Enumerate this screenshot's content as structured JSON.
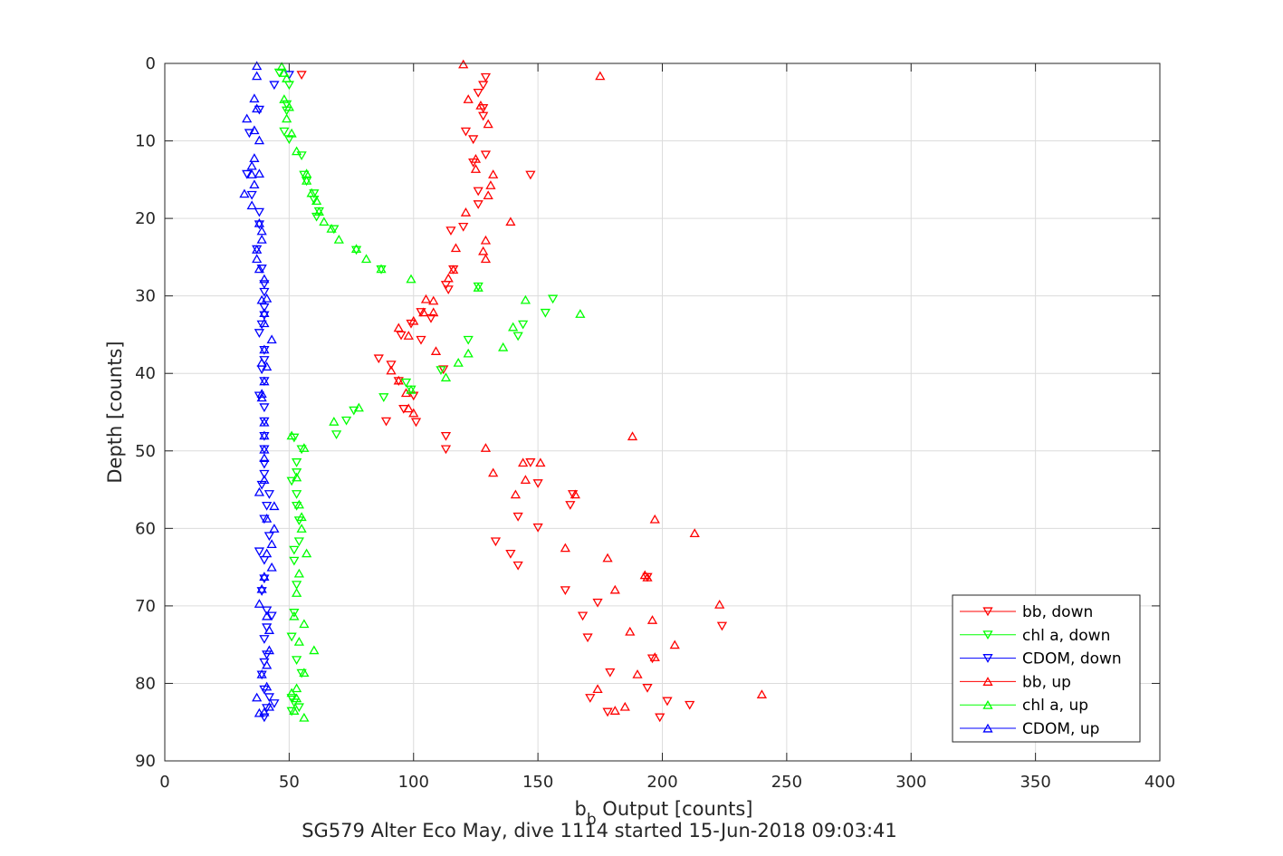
{
  "chart_data": {
    "type": "scatter",
    "title": "",
    "caption": "SG579 Alter Eco May, dive 1114 started 15-Jun-2018 09:03:41",
    "xlabel": "b",
    "xlabel_sub": "b",
    "xlabel_rest": " Output [counts]",
    "ylabel": "Depth [counts]",
    "xlim": [
      0,
      400
    ],
    "ylim": [
      0,
      90
    ],
    "y_reversed": true,
    "grid": true,
    "legend_position": "bottom-right",
    "x_ticks": [
      "0",
      "50",
      "100",
      "150",
      "200",
      "250",
      "300",
      "350",
      "400"
    ],
    "y_ticks": [
      "0",
      "10",
      "20",
      "30",
      "40",
      "50",
      "60",
      "70",
      "80",
      "90"
    ],
    "series": [
      {
        "name": "bb, down",
        "color": "#ff0000",
        "marker": "triangle-down",
        "points": [
          [
            55,
            1.5
          ],
          [
            129,
            1.8
          ],
          [
            128,
            2.8
          ],
          [
            126,
            3.8
          ],
          [
            128,
            5.8
          ],
          [
            128,
            6.8
          ],
          [
            121,
            8.8
          ],
          [
            124,
            9.8
          ],
          [
            129,
            11.8
          ],
          [
            124,
            12.8
          ],
          [
            147,
            14.4
          ],
          [
            126,
            16.5
          ],
          [
            126,
            18.2
          ],
          [
            120,
            21.1
          ],
          [
            115,
            21.6
          ],
          [
            116,
            26.6
          ],
          [
            113,
            28.6
          ],
          [
            114,
            29.2
          ],
          [
            103,
            32.1
          ],
          [
            107,
            32.9
          ],
          [
            99,
            33.6
          ],
          [
            95,
            35.1
          ],
          [
            103,
            35.7
          ],
          [
            86,
            38.1
          ],
          [
            91,
            38.9
          ],
          [
            112,
            39.5
          ],
          [
            94,
            41.0
          ],
          [
            100,
            42.9
          ],
          [
            96,
            44.6
          ],
          [
            89,
            46.2
          ],
          [
            101,
            46.3
          ],
          [
            113,
            48.1
          ],
          [
            113,
            49.8
          ],
          [
            147,
            51.5
          ],
          [
            150,
            54.2
          ],
          [
            164,
            55.6
          ],
          [
            163,
            57.0
          ],
          [
            142,
            58.5
          ],
          [
            150,
            59.9
          ],
          [
            133,
            61.7
          ],
          [
            139,
            63.3
          ],
          [
            142,
            64.8
          ],
          [
            194,
            66.3
          ],
          [
            161,
            68.0
          ],
          [
            174,
            69.6
          ],
          [
            168,
            71.3
          ],
          [
            170,
            74.1
          ],
          [
            196,
            76.8
          ],
          [
            179,
            78.6
          ],
          [
            194,
            80.6
          ],
          [
            202,
            82.3
          ],
          [
            224,
            72.6
          ],
          [
            171,
            81.9
          ],
          [
            211,
            82.8
          ],
          [
            178,
            83.7
          ],
          [
            199,
            84.4
          ]
        ]
      },
      {
        "name": "chl a, down",
        "color": "#00ff00",
        "marker": "triangle-down",
        "points": [
          [
            46,
            1.2
          ],
          [
            50,
            2.8
          ],
          [
            49,
            5.3
          ],
          [
            49,
            6.1
          ],
          [
            48,
            8.8
          ],
          [
            50,
            9.8
          ],
          [
            55,
            11.9
          ],
          [
            56,
            14.4
          ],
          [
            57,
            15.2
          ],
          [
            60,
            16.8
          ],
          [
            60,
            17.6
          ],
          [
            62,
            19.1
          ],
          [
            61,
            19.8
          ],
          [
            68,
            21.4
          ],
          [
            77,
            24.1
          ],
          [
            87,
            26.6
          ],
          [
            126,
            28.8
          ],
          [
            156,
            30.4
          ],
          [
            153,
            32.2
          ],
          [
            144,
            33.7
          ],
          [
            142,
            35.2
          ],
          [
            122,
            35.7
          ],
          [
            111,
            39.6
          ],
          [
            97,
            41.2
          ],
          [
            99,
            42.1
          ],
          [
            88,
            43.1
          ],
          [
            76,
            44.8
          ],
          [
            73,
            46.1
          ],
          [
            69,
            47.9
          ],
          [
            52,
            48.3
          ],
          [
            55,
            49.8
          ],
          [
            53,
            51.5
          ],
          [
            53,
            52.8
          ],
          [
            51,
            53.9
          ],
          [
            53,
            55.6
          ],
          [
            53,
            57.1
          ],
          [
            54,
            59.0
          ],
          [
            54,
            61.7
          ],
          [
            52,
            62.8
          ],
          [
            52,
            64.2
          ],
          [
            53,
            67.3
          ],
          [
            52,
            70.9
          ],
          [
            51,
            74.0
          ],
          [
            53,
            77.0
          ],
          [
            55,
            78.7
          ],
          [
            51,
            81.9
          ],
          [
            52,
            82.5
          ],
          [
            54,
            83.1
          ],
          [
            51,
            83.6
          ]
        ]
      },
      {
        "name": "CDOM, down",
        "color": "#0000ff",
        "marker": "triangle-down",
        "points": [
          [
            50,
            1.5
          ],
          [
            44,
            2.8
          ],
          [
            38,
            6.0
          ],
          [
            34,
            9.0
          ],
          [
            33,
            14.3
          ],
          [
            35,
            17.0
          ],
          [
            38,
            19.2
          ],
          [
            38,
            20.8
          ],
          [
            37,
            24.0
          ],
          [
            39,
            26.5
          ],
          [
            40,
            28.5
          ],
          [
            40,
            29.5
          ],
          [
            40,
            31.5
          ],
          [
            40,
            32.5
          ],
          [
            39,
            33.7
          ],
          [
            38,
            34.8
          ],
          [
            40,
            37.0
          ],
          [
            40,
            38.3
          ],
          [
            39,
            39.5
          ],
          [
            40,
            41.0
          ],
          [
            38,
            42.9
          ],
          [
            40,
            44.4
          ],
          [
            40,
            46.2
          ],
          [
            40,
            48.1
          ],
          [
            40,
            49.8
          ],
          [
            40,
            51.7
          ],
          [
            40,
            53.0
          ],
          [
            39,
            54.4
          ],
          [
            42,
            55.6
          ],
          [
            41,
            57.1
          ],
          [
            40,
            58.8
          ],
          [
            42,
            61.0
          ],
          [
            38,
            63.0
          ],
          [
            40,
            64.1
          ],
          [
            40,
            66.5
          ],
          [
            39,
            68.1
          ],
          [
            41,
            70.6
          ],
          [
            43,
            71.3
          ],
          [
            41,
            72.8
          ],
          [
            40,
            74.3
          ],
          [
            41,
            76.3
          ],
          [
            40,
            77.3
          ],
          [
            39,
            78.9
          ],
          [
            40,
            80.8
          ],
          [
            42,
            81.8
          ],
          [
            44,
            82.6
          ],
          [
            41,
            83.2
          ],
          [
            40,
            84.4
          ]
        ]
      },
      {
        "name": "bb, up",
        "color": "#ff0000",
        "marker": "triangle-up",
        "points": [
          [
            120,
            0.1
          ],
          [
            175,
            1.6
          ],
          [
            122,
            4.6
          ],
          [
            127,
            5.4
          ],
          [
            130,
            7.8
          ],
          [
            125,
            12.3
          ],
          [
            125,
            13.6
          ],
          [
            132,
            14.3
          ],
          [
            131,
            15.7
          ],
          [
            130,
            17.0
          ],
          [
            121,
            19.2
          ],
          [
            139,
            20.4
          ],
          [
            129,
            22.8
          ],
          [
            117,
            23.8
          ],
          [
            128,
            24.2
          ],
          [
            129,
            25.2
          ],
          [
            116,
            26.6
          ],
          [
            114,
            27.7
          ],
          [
            105,
            30.4
          ],
          [
            108,
            30.6
          ],
          [
            104,
            32.1
          ],
          [
            108,
            32.1
          ],
          [
            100,
            33.2
          ],
          [
            94,
            34.1
          ],
          [
            98,
            35.1
          ],
          [
            109,
            37.1
          ],
          [
            91,
            39.6
          ],
          [
            94,
            40.9
          ],
          [
            97,
            42.5
          ],
          [
            98,
            44.5
          ],
          [
            100,
            45.1
          ],
          [
            188,
            48.1
          ],
          [
            129,
            49.6
          ],
          [
            144,
            51.5
          ],
          [
            151,
            51.5
          ],
          [
            132,
            52.8
          ],
          [
            145,
            53.7
          ],
          [
            141,
            55.6
          ],
          [
            165,
            55.6
          ],
          [
            197,
            58.8
          ],
          [
            213,
            60.6
          ],
          [
            161,
            62.5
          ],
          [
            178,
            63.8
          ],
          [
            193,
            66.0
          ],
          [
            194,
            66.3
          ],
          [
            181,
            67.9
          ],
          [
            223,
            69.8
          ],
          [
            196,
            71.8
          ],
          [
            187,
            73.3
          ],
          [
            205,
            75.0
          ],
          [
            197,
            76.6
          ],
          [
            190,
            78.8
          ],
          [
            240,
            81.4
          ],
          [
            174,
            80.7
          ],
          [
            185,
            83.0
          ],
          [
            181,
            83.5
          ]
        ]
      },
      {
        "name": "chl a, up",
        "color": "#00ff00",
        "marker": "triangle-up",
        "points": [
          [
            47,
            0.4
          ],
          [
            48,
            1.2
          ],
          [
            49,
            1.9
          ],
          [
            48,
            4.6
          ],
          [
            50,
            5.6
          ],
          [
            49,
            7.1
          ],
          [
            51,
            9.0
          ],
          [
            53,
            11.3
          ],
          [
            57,
            14.2
          ],
          [
            57,
            15.1
          ],
          [
            59,
            16.7
          ],
          [
            61,
            17.7
          ],
          [
            62,
            19.1
          ],
          [
            64,
            20.4
          ],
          [
            67,
            21.3
          ],
          [
            70,
            22.7
          ],
          [
            77,
            23.9
          ],
          [
            81,
            25.2
          ],
          [
            87,
            26.5
          ],
          [
            99,
            27.8
          ],
          [
            126,
            28.9
          ],
          [
            145,
            30.5
          ],
          [
            167,
            32.3
          ],
          [
            140,
            34.0
          ],
          [
            136,
            36.6
          ],
          [
            122,
            37.4
          ],
          [
            118,
            38.6
          ],
          [
            113,
            40.5
          ],
          [
            99,
            42.1
          ],
          [
            78,
            44.4
          ],
          [
            68,
            46.2
          ],
          [
            51,
            48.0
          ],
          [
            56,
            49.6
          ],
          [
            53,
            53.4
          ],
          [
            54,
            56.9
          ],
          [
            55,
            58.5
          ],
          [
            55,
            60.0
          ],
          [
            57,
            63.2
          ],
          [
            54,
            65.8
          ],
          [
            53,
            68.3
          ],
          [
            52,
            71.3
          ],
          [
            56,
            72.3
          ],
          [
            54,
            74.6
          ],
          [
            60,
            75.7
          ],
          [
            56,
            78.6
          ],
          [
            53,
            80.6
          ],
          [
            51,
            81.2
          ],
          [
            53,
            81.9
          ],
          [
            56,
            84.4
          ],
          [
            52,
            83.5
          ]
        ]
      },
      {
        "name": "CDOM, up",
        "color": "#0000ff",
        "marker": "triangle-up",
        "points": [
          [
            37,
            0.3
          ],
          [
            37,
            1.6
          ],
          [
            36,
            4.5
          ],
          [
            37,
            5.8
          ],
          [
            33,
            7.1
          ],
          [
            36,
            8.6
          ],
          [
            38,
            9.9
          ],
          [
            36,
            12.2
          ],
          [
            35,
            13.2
          ],
          [
            35,
            14.3
          ],
          [
            38,
            14.2
          ],
          [
            36,
            15.6
          ],
          [
            32,
            16.8
          ],
          [
            35,
            18.3
          ],
          [
            38,
            20.6
          ],
          [
            39,
            21.6
          ],
          [
            39,
            22.7
          ],
          [
            37,
            24.0
          ],
          [
            37,
            25.2
          ],
          [
            38,
            26.5
          ],
          [
            40,
            27.8
          ],
          [
            41,
            30.3
          ],
          [
            39,
            30.5
          ],
          [
            40,
            32.2
          ],
          [
            40,
            33.5
          ],
          [
            43,
            35.6
          ],
          [
            40,
            36.9
          ],
          [
            39,
            38.6
          ],
          [
            41,
            39.1
          ],
          [
            40,
            41.0
          ],
          [
            39,
            42.6
          ],
          [
            39,
            43.1
          ],
          [
            40,
            46.3
          ],
          [
            40,
            48.0
          ],
          [
            40,
            49.8
          ],
          [
            40,
            50.9
          ],
          [
            40,
            53.7
          ],
          [
            38,
            55.3
          ],
          [
            44,
            57.1
          ],
          [
            41,
            58.7
          ],
          [
            44,
            60.0
          ],
          [
            43,
            62.0
          ],
          [
            41,
            63.2
          ],
          [
            43,
            65.0
          ],
          [
            40,
            66.2
          ],
          [
            39,
            67.8
          ],
          [
            38,
            69.7
          ],
          [
            41,
            71.3
          ],
          [
            42,
            73.1
          ],
          [
            42,
            75.7
          ],
          [
            41,
            77.6
          ],
          [
            39,
            78.8
          ],
          [
            41,
            80.4
          ],
          [
            37,
            81.8
          ],
          [
            42,
            83.0
          ],
          [
            40,
            83.7
          ],
          [
            38,
            83.8
          ]
        ]
      }
    ]
  }
}
